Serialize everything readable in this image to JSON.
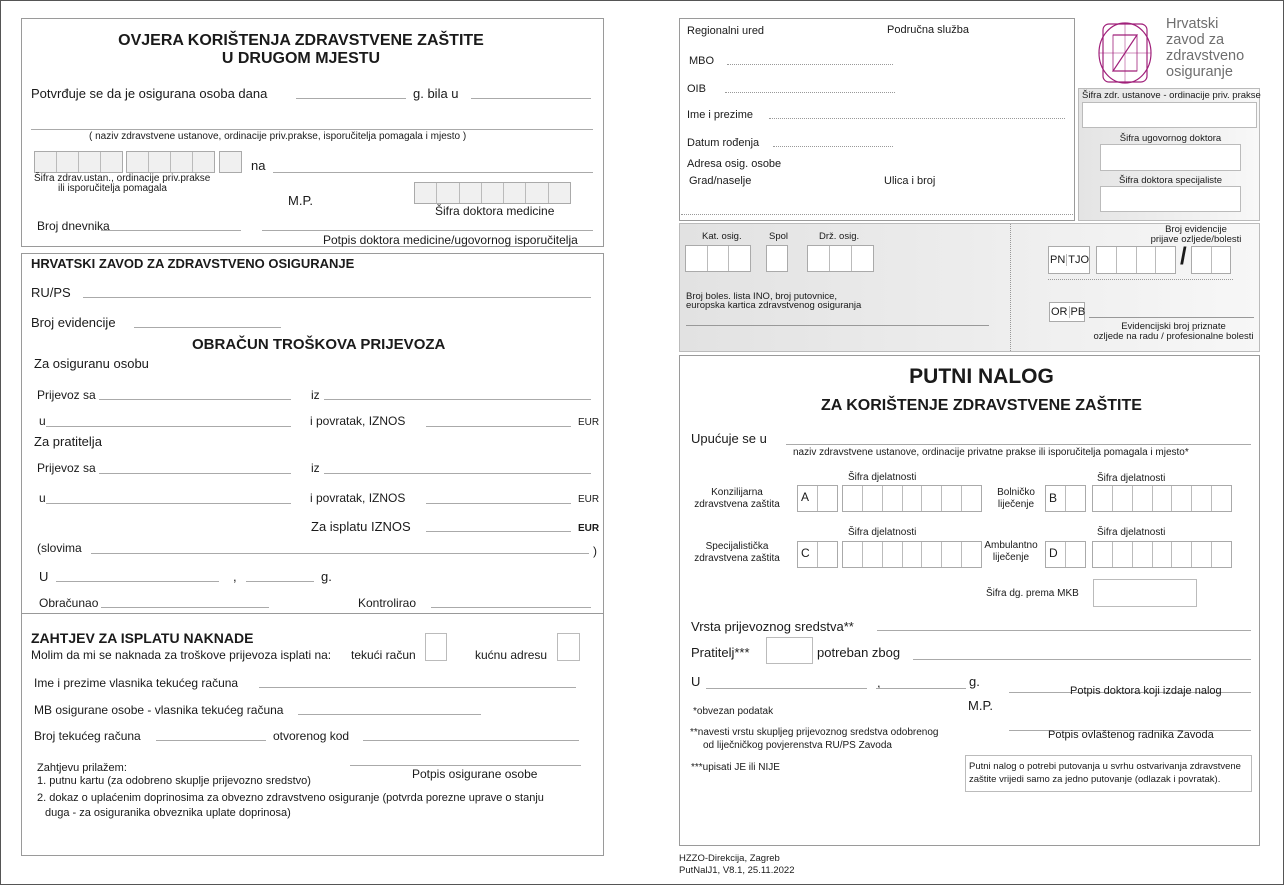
{
  "ovjera": {
    "title1": "OVJERA KORIŠTENJA ZDRAVSTVENE ZAŠTITE",
    "title2": "U DRUGOM MJESTU",
    "potvrduje": "Potvrđuje se da je osigurana osoba dana",
    "g_bila_u": "g.  bila u",
    "naziv_caption": "( naziv zdravstvene ustanove, ordinacije priv.prakse, isporučitelja pomagala i mjesto )",
    "na": "na",
    "sifra_ustan_1": "Šifra zdrav.ustan., ordinacije priv.prakse",
    "sifra_ustan_2": "ili isporučitelja pomagala",
    "mp": "M.P.",
    "sifra_doktora": "Šifra doktora medicine",
    "broj_dnevnika": "Broj dnevnika",
    "potpis": "Potpis doktora medicine/ugovornog isporučitelja"
  },
  "obracun": {
    "hzzo": "HRVATSKI ZAVOD ZA  ZDRAVSTVENO OSIGURANJE",
    "rups": "RU/PS",
    "broj_evidencije": "Broj evidencije",
    "title": "OBRAČUN TROŠKOVA PRIJEVOZA",
    "za_osobu": "Za osiguranu osobu",
    "prijevoz_sa": "Prijevoz sa",
    "iz": "iz",
    "u": "u",
    "povratak_iznos": "i povratak,  IZNOS",
    "eur": "EUR",
    "za_pratitelja": "Za pratitelja",
    "za_isplatu": "Za isplatu IZNOS",
    "slovima": "(slovima",
    "close_paren": ")",
    "U": "U",
    "comma": ",",
    "g": "g.",
    "obracunao": "Obračunao",
    "kontrolirao": "Kontrolirao"
  },
  "zahtjev": {
    "title": "ZAHTJEV ZA ISPLATU NAKNADE",
    "molim": "Molim da mi se naknada za troškove prijevoza isplati na:",
    "tekuci": "tekući račun",
    "kucnu": "kućnu adresu",
    "ime_vlasnika": "Ime i prezime vlasnika tekućeg računa",
    "mb": "MB osigurane osobe - vlasnika tekućeg računa",
    "broj_racuna": "Broj tekućeg računa",
    "otvorenog": "otvorenog kod",
    "prilazem": "Zahtjevu prilažem:",
    "potpis": "Potpis osigurane osobe",
    "item1": "1. putnu kartu (za odobreno skuplje prijevozno sredstvo)",
    "item2a": "2. dokaz o uplaćenim doprinosima za obvezno zdravstveno osiguranje (potvrda porezne uprave o stanju",
    "item2b": "duga - za osiguranika obveznika uplate doprinosa)"
  },
  "header": {
    "regionalni": "Regionalni ured",
    "podrucna": "Područna služba",
    "mbo": "MBO",
    "oib": "OIB",
    "ime": "Ime i prezime",
    "datum": "Datum rođenja",
    "adresa": "Adresa osig. osobe",
    "grad": "Grad/naselje",
    "ulica": "Ulica i broj"
  },
  "logo": {
    "line1": "Hrvatski",
    "line2": "zavod za",
    "line3": "zdravstveno",
    "line4": "osiguranje",
    "color": "#a0207a"
  },
  "sifre": {
    "ustanove": "Šifra zdr. ustanove - ordinacije priv. prakse",
    "ugovornog": "Šifra ugovornog doktora",
    "specijaliste": "Šifra doktora specijaliste"
  },
  "band": {
    "kat": "Kat. osig.",
    "spol": "Spol",
    "drz": "Drž. osig.",
    "broj_boles_1": "Broj boles. lista INO, broj putovnice,",
    "broj_boles_2": "europska kartica zdravstvenog osiguranja",
    "broj_ev_1": "Broj evidencije",
    "broj_ev_2": "prijave ozljede/bolesti",
    "pn": "PN",
    "tjo": "TJO",
    "slash": "/",
    "or": "OR",
    "pb": "PB",
    "ev_priz_1": "Evidencijski broj priznate",
    "ev_priz_2": "ozljede na radu / profesionalne bolesti"
  },
  "putni": {
    "title": "PUTNI NALOG",
    "subtitle": "ZA KORIŠTENJE ZDRAVSTVENE ZAŠTITE",
    "upucuje": "Upućuje se u",
    "naziv_caption": "naziv zdravstvene ustanove, ordinacije privatne prakse ili isporučitelja pomagala i mjesto*",
    "sifra_dj": "Šifra djelatnosti",
    "konz_1": "Konzilijarna",
    "konz_2": "zdravstvena zaštita",
    "bol_1": "Bolničko",
    "bol_2": "liječenje",
    "spec_1": "Specijalistička",
    "spec_2": "zdravstvena zaštita",
    "amb_1": "Ambulantno",
    "amb_2": "liječenje",
    "A": "A",
    "B": "B",
    "C": "C",
    "D": "D",
    "mkb": "Šifra dg. prema MKB",
    "vrsta": "Vrsta prijevoznog sredstva**",
    "pratitelj": "Pratitelj***",
    "potreban": "potreban zbog",
    "U": "U",
    "comma": ",",
    "g": "g.",
    "potpis_doktora": "Potpis doktora koji izdaje nalog",
    "obvezan": "*obvezan podatak",
    "mp": "M.P.",
    "navesti_1": "**navesti vrstu skupljeg prijevoznog sredstva odobrenog",
    "navesti_2": "od liječničkog povjerenstva RU/PS Zavoda",
    "potpis_radnika": "Potpis ovlaštenog radnika Zavoda",
    "upisati": "***upisati JE ili NIJE",
    "note_1": "Putni nalog o potrebi putovanja u svrhu ostvarivanja zdravstvene",
    "note_2": "zaštite vrijedi samo za jedno putovanje (odlazak i povratak)."
  },
  "footer": {
    "line1": "HZZO-Direkcija, Zagreb",
    "line2": "PutNalJ1, V8.1, 25.11.2022"
  }
}
